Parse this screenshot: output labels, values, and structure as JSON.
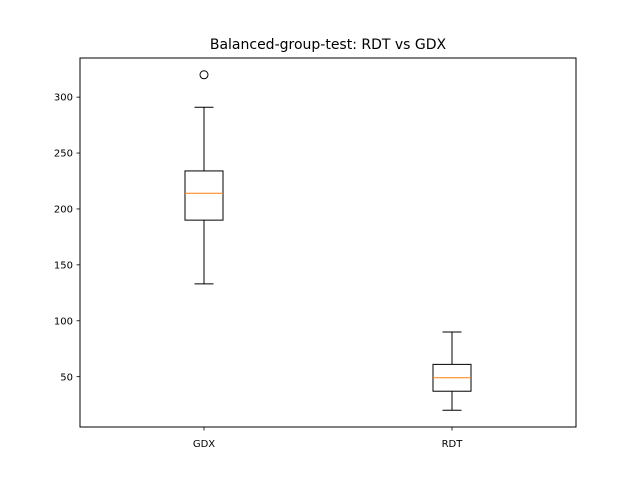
{
  "chart_data": {
    "type": "box",
    "title": "Balanced-group-test: RDT vs GDX",
    "xlabel": "",
    "ylabel": "",
    "categories": [
      "GDX",
      "RDT"
    ],
    "series": [
      {
        "category": "GDX",
        "whisker_low": 133,
        "q1": 190,
        "median": 214,
        "q3": 234,
        "whisker_high": 291,
        "outliers": [
          320
        ]
      },
      {
        "category": "RDT",
        "whisker_low": 20,
        "q1": 37,
        "median": 49,
        "q3": 61,
        "whisker_high": 90,
        "outliers": []
      }
    ],
    "yticks": [
      50,
      100,
      150,
      200,
      250,
      300
    ],
    "ylim": [
      5,
      335
    ],
    "grid": false,
    "legend": "none",
    "colors": {
      "box": "#000000",
      "median": "#ff7f0e",
      "background": "#ffffff"
    }
  }
}
